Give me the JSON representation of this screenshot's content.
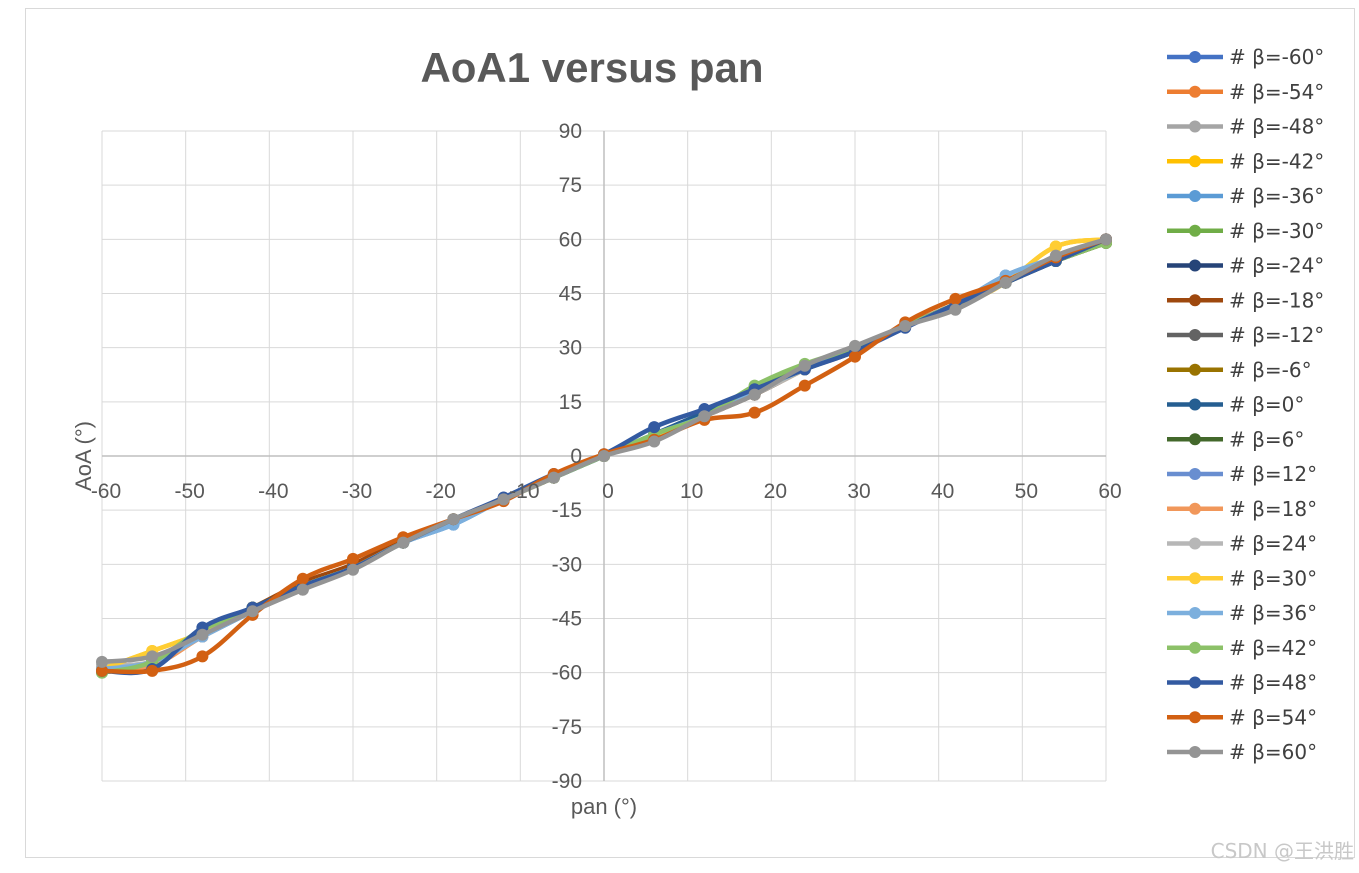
{
  "chart_data": {
    "type": "line",
    "title": "AoA1 versus pan",
    "xlabel": "pan (°)",
    "ylabel": "AoA (°)",
    "xlim": [
      -60,
      60
    ],
    "ylim": [
      -90,
      90
    ],
    "x_ticks": [
      -60,
      -50,
      -40,
      -30,
      -20,
      -10,
      0,
      10,
      20,
      30,
      40,
      50,
      60
    ],
    "y_ticks": [
      90,
      75,
      60,
      45,
      30,
      15,
      0,
      -15,
      -30,
      -45,
      -60,
      -75,
      -90
    ],
    "grid": true,
    "legend_position": "right",
    "x": [
      -60,
      -54,
      -48,
      -42,
      -36,
      -30,
      -24,
      -18,
      -12,
      -6,
      0,
      6,
      12,
      18,
      24,
      30,
      36,
      42,
      48,
      54,
      60
    ],
    "series": [
      {
        "name": "# β=-60°",
        "color": "#4472c4",
        "values": [
          -59.5,
          -57,
          -49,
          -43,
          -36,
          -31,
          -24,
          -18,
          -12,
          -6,
          0,
          5,
          11,
          18,
          24,
          29,
          36,
          42,
          48,
          54,
          60
        ]
      },
      {
        "name": "# β=-54°",
        "color": "#ed7d31",
        "values": [
          -59,
          -58,
          -50,
          -43,
          -36,
          -31,
          -24,
          -18,
          -12,
          -6,
          0,
          5,
          11,
          17,
          24,
          30,
          36,
          42,
          48,
          55,
          60
        ]
      },
      {
        "name": "# β=-48°",
        "color": "#a5a5a5",
        "values": [
          -58,
          -57,
          -50,
          -43,
          -37,
          -31,
          -24,
          -18,
          -12,
          -6,
          0,
          5,
          11,
          17,
          24,
          30,
          36,
          42,
          48,
          55,
          60
        ]
      },
      {
        "name": "# β=-42°",
        "color": "#ffc000",
        "values": [
          -59,
          -54,
          -49,
          -43,
          -36,
          -31,
          -24,
          -18,
          -12,
          -6,
          0,
          5,
          11,
          18,
          24,
          30,
          36,
          41,
          48,
          58,
          60
        ]
      },
      {
        "name": "# β=-36°",
        "color": "#5b9bd5",
        "values": [
          -59,
          -57,
          -50,
          -43,
          -36,
          -31,
          -24,
          -19,
          -12,
          -6,
          0,
          6,
          11,
          18,
          24,
          30,
          36,
          42,
          50,
          55,
          60
        ]
      },
      {
        "name": "# β=-30°",
        "color": "#70ad47",
        "values": [
          -60,
          -57,
          -48,
          -43,
          -36,
          -31,
          -24,
          -17.5,
          -12,
          -6,
          0,
          6,
          11,
          19,
          25,
          30,
          36,
          42,
          48,
          54,
          59
        ]
      },
      {
        "name": "# β=-24°",
        "color": "#264478",
        "values": [
          -59,
          -57,
          -48,
          -42,
          -36,
          -31,
          -24,
          -18,
          -12,
          -6,
          0,
          6,
          12,
          18,
          24,
          30,
          36,
          42,
          48,
          54,
          60
        ]
      },
      {
        "name": "# β=-18°",
        "color": "#9e480e",
        "values": [
          -59,
          -57,
          -48,
          -42,
          -35,
          -30,
          -23,
          -18,
          -12,
          -6,
          0,
          5,
          11,
          17,
          24,
          29,
          36,
          42,
          48,
          54,
          60
        ]
      },
      {
        "name": "# β=-12°",
        "color": "#636363",
        "values": [
          -59,
          -57,
          -49,
          -43,
          -36,
          -31,
          -24,
          -18,
          -12,
          -6,
          0,
          5,
          11,
          17,
          24,
          30,
          36,
          41,
          48,
          55,
          60
        ]
      },
      {
        "name": "# β=-6°",
        "color": "#997300",
        "values": [
          -59,
          -57,
          -48,
          -42,
          -36,
          -31,
          -24,
          -18,
          -12,
          -6,
          0,
          5,
          11,
          17,
          24,
          30,
          36,
          42,
          48,
          54,
          59
        ]
      },
      {
        "name": "# β=0°",
        "color": "#255e91",
        "values": [
          -59,
          -58,
          -48,
          -42,
          -36,
          -31,
          -24,
          -18,
          -12,
          -6,
          0,
          6,
          12,
          18,
          24,
          30,
          36,
          42,
          48,
          54,
          60
        ]
      },
      {
        "name": "# β=6°",
        "color": "#43682b",
        "values": [
          -59,
          -57,
          -48,
          -42,
          -36,
          -31,
          -24,
          -18,
          -12,
          -6,
          0,
          5,
          11,
          17,
          24,
          30,
          36,
          42,
          48,
          54,
          59
        ]
      },
      {
        "name": "# β=12°",
        "color": "#698ed0",
        "values": [
          -59,
          -57,
          -49,
          -43,
          -36,
          -31,
          -24,
          -18,
          -12,
          -6,
          0,
          5,
          11,
          17,
          24,
          30,
          36,
          42,
          48,
          55,
          60
        ]
      },
      {
        "name": "# β=18°",
        "color": "#f1975a",
        "values": [
          -59,
          -58,
          -50,
          -43,
          -36,
          -31,
          -24,
          -18,
          -12,
          -6,
          0,
          5,
          11,
          17,
          24,
          30,
          36,
          42,
          48,
          55,
          60
        ]
      },
      {
        "name": "# β=24°",
        "color": "#b7b7b7",
        "values": [
          -58,
          -57,
          -50,
          -43,
          -37,
          -31,
          -24,
          -18,
          -12,
          -6,
          0,
          5,
          11,
          17,
          24,
          30,
          36,
          42,
          48,
          55,
          60
        ]
      },
      {
        "name": "# β=30°",
        "color": "#ffcd33",
        "values": [
          -59,
          -54,
          -49,
          -43,
          -36,
          -31,
          -24,
          -18,
          -12,
          -6,
          0,
          5,
          11,
          18,
          24,
          30,
          36,
          41,
          48,
          58,
          60
        ]
      },
      {
        "name": "# β=36°",
        "color": "#7cafdd",
        "values": [
          -59,
          -57,
          -50,
          -43,
          -36,
          -31,
          -24,
          -19,
          -12,
          -6,
          0,
          6,
          11,
          18,
          24,
          30,
          36,
          42,
          50,
          55,
          60
        ]
      },
      {
        "name": "# β=42°",
        "color": "#8cc168",
        "values": [
          -60,
          -57,
          -48,
          -43,
          -36,
          -31,
          -24,
          -17.5,
          -12,
          -6,
          0,
          6,
          11,
          19.5,
          25.5,
          30,
          36,
          42,
          48,
          54,
          59
        ]
      },
      {
        "name": "# β=48°",
        "color": "#335aa1",
        "values": [
          -59.5,
          -59,
          -47.5,
          -42,
          -36,
          -31,
          -24,
          -17.5,
          -11.5,
          -5,
          0.5,
          8,
          13,
          18.5,
          24,
          29,
          35.5,
          42,
          48,
          54,
          60
        ]
      },
      {
        "name": "# β=54°",
        "color": "#d26012",
        "values": [
          -59.5,
          -59.5,
          -55.5,
          -44,
          -34,
          -28.5,
          -22.5,
          -17.5,
          -12.5,
          -5,
          0.5,
          4.5,
          10,
          12,
          19.5,
          27.5,
          37,
          43.5,
          48.5,
          55,
          60
        ]
      },
      {
        "name": "# β=60°",
        "color": "#949494",
        "values": [
          -57,
          -55.5,
          -49.5,
          -43,
          -37,
          -31.5,
          -24,
          -17.5,
          -12,
          -6,
          0,
          4,
          11,
          17,
          25,
          30.5,
          36,
          40.5,
          48,
          55.5,
          60
        ]
      }
    ]
  },
  "watermark": "CSDN @王洪胜"
}
